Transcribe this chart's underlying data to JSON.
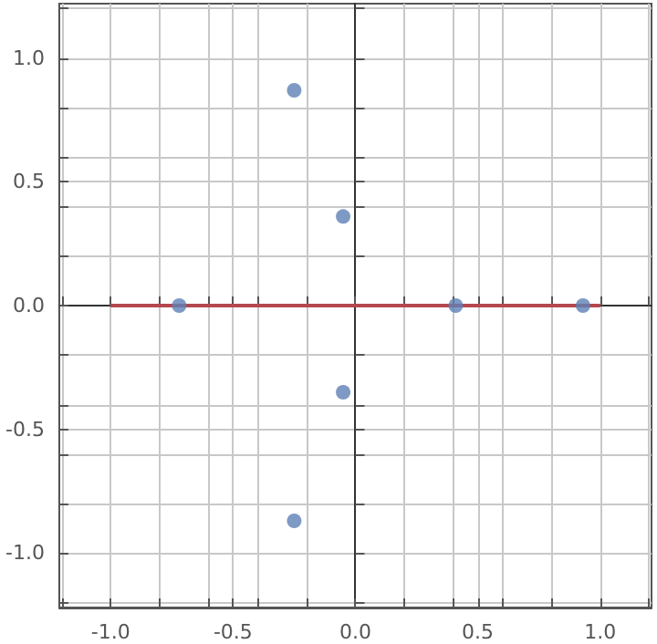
{
  "chart_data": {
    "type": "scatter",
    "xlim": [
      -1.21,
      1.21
    ],
    "ylim": [
      -1.22,
      1.22
    ],
    "xticks": [
      {
        "value": -1.2,
        "label": null
      },
      {
        "value": -1,
        "label": "-1.0"
      },
      {
        "value": -0.8,
        "label": null
      },
      {
        "value": -0.6,
        "label": null
      },
      {
        "value": -0.5,
        "label": "-0.5"
      },
      {
        "value": -0.4,
        "label": null
      },
      {
        "value": -0.2,
        "label": null
      },
      {
        "value": 0,
        "label": "0.0"
      },
      {
        "value": 0.2,
        "label": null
      },
      {
        "value": 0.4,
        "label": null
      },
      {
        "value": 0.5,
        "label": "0.5"
      },
      {
        "value": 0.6,
        "label": null
      },
      {
        "value": 0.8,
        "label": null
      },
      {
        "value": 1,
        "label": "1.0"
      },
      {
        "value": 1.2,
        "label": null
      }
    ],
    "yticks": [
      {
        "value": -1.2,
        "label": null
      },
      {
        "value": -1,
        "label": "-1.0"
      },
      {
        "value": -0.8,
        "label": null
      },
      {
        "value": -0.6,
        "label": null
      },
      {
        "value": -0.5,
        "label": "-0.5"
      },
      {
        "value": -0.4,
        "label": null
      },
      {
        "value": -0.2,
        "label": null
      },
      {
        "value": 0,
        "label": "0.0"
      },
      {
        "value": 0.2,
        "label": null
      },
      {
        "value": 0.4,
        "label": null
      },
      {
        "value": 0.5,
        "label": "0.5"
      },
      {
        "value": 0.6,
        "label": null
      },
      {
        "value": 0.8,
        "label": null
      },
      {
        "value": 1,
        "label": "1.0"
      },
      {
        "value": 1.2,
        "label": null
      }
    ],
    "grid": true,
    "marker": "circle",
    "series": [
      {
        "type": "line",
        "marker": "none",
        "color": "#b5474f",
        "x": [
          -1,
          1
        ],
        "values": [
          0,
          0
        ]
      },
      {
        "color": "#5e81b5",
        "x": [
          -0.72,
          -0.25,
          -0.05,
          -0.05,
          -0.25,
          0.41,
          0.93
        ],
        "values": [
          0,
          0.87,
          0.36,
          -0.35,
          -0.87,
          0,
          0
        ]
      }
    ]
  }
}
